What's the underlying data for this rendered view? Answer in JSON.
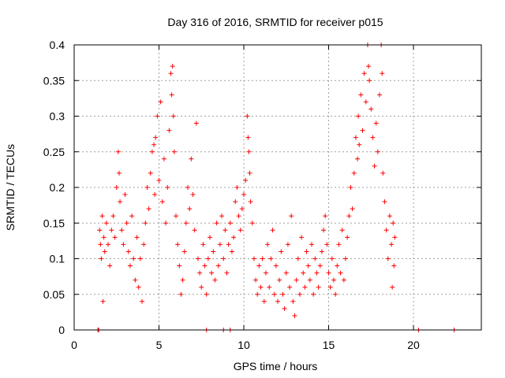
{
  "chart_data": {
    "type": "scatter",
    "title": "Day 316 of 2016, SRMTID for receiver p015",
    "xlabel": "GPS time / hours",
    "ylabel": "SRMTID / TECUs",
    "xlim": [
      0,
      24
    ],
    "ylim": [
      0,
      0.4
    ],
    "grid": true,
    "marker": "+",
    "color": "#ff0000",
    "x_ticks": [
      0,
      5,
      10,
      15,
      20
    ],
    "x_tick_labels": [
      "0",
      "5",
      "10",
      "15",
      "20"
    ],
    "y_ticks": [
      0,
      0.05,
      0.1,
      0.15,
      0.2,
      0.25,
      0.3,
      0.35,
      0.4
    ],
    "y_tick_labels": [
      "0",
      "0.05",
      "0.1",
      "0.15",
      "0.2",
      "0.25",
      "0.3",
      "0.35",
      "0.4"
    ],
    "series": [
      {
        "name": "SRMTID",
        "points": [
          [
            1.4,
            0.0
          ],
          [
            1.45,
            0.0
          ],
          [
            7.8,
            0.0
          ],
          [
            8.8,
            0.0
          ],
          [
            9.2,
            0.0
          ],
          [
            20.3,
            0.0
          ],
          [
            22.4,
            0.0
          ],
          [
            1.5,
            0.14
          ],
          [
            1.55,
            0.12
          ],
          [
            1.6,
            0.1
          ],
          [
            1.65,
            0.16
          ],
          [
            1.7,
            0.04
          ],
          [
            1.75,
            0.13
          ],
          [
            1.8,
            0.11
          ],
          [
            1.9,
            0.15
          ],
          [
            2.0,
            0.12
          ],
          [
            2.1,
            0.09
          ],
          [
            2.2,
            0.14
          ],
          [
            2.3,
            0.16
          ],
          [
            2.4,
            0.13
          ],
          [
            2.5,
            0.2
          ],
          [
            2.6,
            0.25
          ],
          [
            2.65,
            0.22
          ],
          [
            2.7,
            0.18
          ],
          [
            2.8,
            0.14
          ],
          [
            2.9,
            0.12
          ],
          [
            3.0,
            0.19
          ],
          [
            3.1,
            0.15
          ],
          [
            3.2,
            0.11
          ],
          [
            3.3,
            0.09
          ],
          [
            3.4,
            0.16
          ],
          [
            3.5,
            0.1
          ],
          [
            3.6,
            0.07
          ],
          [
            3.7,
            0.13
          ],
          [
            3.8,
            0.06
          ],
          [
            3.9,
            0.1
          ],
          [
            4.0,
            0.04
          ],
          [
            4.1,
            0.12
          ],
          [
            4.2,
            0.15
          ],
          [
            4.3,
            0.2
          ],
          [
            4.4,
            0.17
          ],
          [
            4.5,
            0.22
          ],
          [
            4.6,
            0.25
          ],
          [
            4.7,
            0.26
          ],
          [
            4.75,
            0.19
          ],
          [
            4.8,
            0.27
          ],
          [
            4.9,
            0.3
          ],
          [
            5.0,
            0.21
          ],
          [
            5.1,
            0.32
          ],
          [
            5.2,
            0.18
          ],
          [
            5.3,
            0.24
          ],
          [
            5.4,
            0.15
          ],
          [
            5.5,
            0.2
          ],
          [
            5.6,
            0.28
          ],
          [
            5.7,
            0.36
          ],
          [
            5.75,
            0.33
          ],
          [
            5.8,
            0.37
          ],
          [
            5.85,
            0.3
          ],
          [
            5.9,
            0.25
          ],
          [
            6.0,
            0.16
          ],
          [
            6.1,
            0.12
          ],
          [
            6.2,
            0.09
          ],
          [
            6.3,
            0.05
          ],
          [
            6.4,
            0.07
          ],
          [
            6.5,
            0.11
          ],
          [
            6.6,
            0.15
          ],
          [
            6.7,
            0.2
          ],
          [
            6.8,
            0.17
          ],
          [
            6.9,
            0.24
          ],
          [
            7.0,
            0.19
          ],
          [
            7.1,
            0.14
          ],
          [
            7.2,
            0.29
          ],
          [
            7.3,
            0.1
          ],
          [
            7.4,
            0.08
          ],
          [
            7.5,
            0.06
          ],
          [
            7.6,
            0.12
          ],
          [
            7.7,
            0.09
          ],
          [
            7.8,
            0.05
          ],
          [
            7.9,
            0.1
          ],
          [
            8.0,
            0.13
          ],
          [
            8.1,
            0.08
          ],
          [
            8.2,
            0.11
          ],
          [
            8.3,
            0.07
          ],
          [
            8.4,
            0.15
          ],
          [
            8.5,
            0.09
          ],
          [
            8.6,
            0.12
          ],
          [
            8.7,
            0.16
          ],
          [
            8.8,
            0.1
          ],
          [
            8.9,
            0.14
          ],
          [
            9.0,
            0.08
          ],
          [
            9.1,
            0.12
          ],
          [
            9.2,
            0.15
          ],
          [
            9.3,
            0.11
          ],
          [
            9.4,
            0.13
          ],
          [
            9.5,
            0.18
          ],
          [
            9.6,
            0.2
          ],
          [
            9.7,
            0.16
          ],
          [
            9.8,
            0.14
          ],
          [
            9.9,
            0.17
          ],
          [
            10.0,
            0.19
          ],
          [
            10.1,
            0.21
          ],
          [
            10.2,
            0.3
          ],
          [
            10.25,
            0.27
          ],
          [
            10.3,
            0.25
          ],
          [
            10.35,
            0.22
          ],
          [
            10.4,
            0.18
          ],
          [
            10.5,
            0.15
          ],
          [
            10.6,
            0.1
          ],
          [
            10.7,
            0.07
          ],
          [
            10.8,
            0.05
          ],
          [
            10.9,
            0.09
          ],
          [
            11.0,
            0.06
          ],
          [
            11.1,
            0.1
          ],
          [
            11.2,
            0.04
          ],
          [
            11.3,
            0.08
          ],
          [
            11.4,
            0.12
          ],
          [
            11.5,
            0.06
          ],
          [
            11.6,
            0.1
          ],
          [
            11.7,
            0.14
          ],
          [
            11.8,
            0.05
          ],
          [
            11.9,
            0.09
          ],
          [
            12.0,
            0.04
          ],
          [
            12.1,
            0.07
          ],
          [
            12.2,
            0.11
          ],
          [
            12.3,
            0.05
          ],
          [
            12.4,
            0.03
          ],
          [
            12.5,
            0.08
          ],
          [
            12.6,
            0.12
          ],
          [
            12.7,
            0.06
          ],
          [
            12.8,
            0.16
          ],
          [
            12.9,
            0.04
          ],
          [
            13.0,
            0.02
          ],
          [
            13.1,
            0.07
          ],
          [
            13.2,
            0.1
          ],
          [
            13.3,
            0.05
          ],
          [
            13.4,
            0.13
          ],
          [
            13.5,
            0.08
          ],
          [
            13.6,
            0.06
          ],
          [
            13.7,
            0.11
          ],
          [
            13.8,
            0.09
          ],
          [
            13.9,
            0.07
          ],
          [
            14.0,
            0.12
          ],
          [
            14.1,
            0.05
          ],
          [
            14.2,
            0.1
          ],
          [
            14.3,
            0.08
          ],
          [
            14.4,
            0.06
          ],
          [
            14.5,
            0.09
          ],
          [
            14.6,
            0.11
          ],
          [
            14.7,
            0.14
          ],
          [
            14.8,
            0.16
          ],
          [
            14.9,
            0.12
          ],
          [
            15.0,
            0.08
          ],
          [
            15.1,
            0.06
          ],
          [
            15.2,
            0.1
          ],
          [
            15.3,
            0.07
          ],
          [
            15.4,
            0.05
          ],
          [
            15.5,
            0.09
          ],
          [
            15.6,
            0.12
          ],
          [
            15.7,
            0.08
          ],
          [
            15.8,
            0.14
          ],
          [
            15.9,
            0.07
          ],
          [
            16.0,
            0.1
          ],
          [
            16.1,
            0.13
          ],
          [
            16.2,
            0.16
          ],
          [
            16.3,
            0.2
          ],
          [
            16.4,
            0.17
          ],
          [
            16.5,
            0.22
          ],
          [
            16.6,
            0.27
          ],
          [
            16.7,
            0.24
          ],
          [
            16.75,
            0.3
          ],
          [
            16.8,
            0.26
          ],
          [
            16.9,
            0.33
          ],
          [
            17.0,
            0.28
          ],
          [
            17.1,
            0.36
          ],
          [
            17.2,
            0.32
          ],
          [
            17.3,
            0.4
          ],
          [
            17.35,
            0.37
          ],
          [
            17.4,
            0.35
          ],
          [
            17.5,
            0.31
          ],
          [
            17.6,
            0.27
          ],
          [
            17.7,
            0.23
          ],
          [
            17.8,
            0.29
          ],
          [
            17.9,
            0.25
          ],
          [
            18.0,
            0.33
          ],
          [
            18.1,
            0.4
          ],
          [
            18.15,
            0.36
          ],
          [
            18.2,
            0.22
          ],
          [
            18.3,
            0.18
          ],
          [
            18.4,
            0.14
          ],
          [
            18.5,
            0.1
          ],
          [
            18.6,
            0.16
          ],
          [
            18.7,
            0.12
          ],
          [
            18.75,
            0.06
          ],
          [
            18.8,
            0.15
          ],
          [
            18.85,
            0.09
          ],
          [
            18.9,
            0.13
          ]
        ]
      }
    ]
  }
}
